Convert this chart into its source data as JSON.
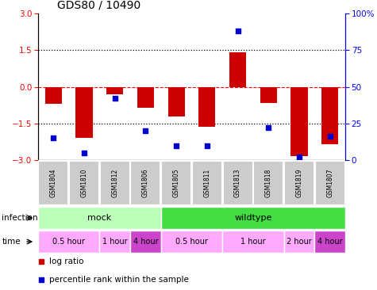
{
  "title": "GDS80 / 10490",
  "samples": [
    "GSM1804",
    "GSM1810",
    "GSM1812",
    "GSM1806",
    "GSM1805",
    "GSM1811",
    "GSM1813",
    "GSM1818",
    "GSM1819",
    "GSM1807"
  ],
  "log_ratios": [
    -0.7,
    -2.1,
    -0.3,
    -0.85,
    -1.2,
    -1.65,
    1.4,
    -0.65,
    -2.85,
    -2.35
  ],
  "percentile_ranks": [
    15,
    5,
    42,
    20,
    10,
    10,
    88,
    22,
    2,
    16
  ],
  "ylim_left": [
    -3,
    3
  ],
  "ylim_right": [
    0,
    100
  ],
  "yticks_left": [
    -3,
    -1.5,
    0,
    1.5,
    3
  ],
  "yticks_right": [
    0,
    25,
    50,
    75,
    100
  ],
  "bar_color": "#cc0000",
  "dot_color": "#0000cc",
  "infection_groups": [
    {
      "label": "mock",
      "start": 0,
      "end": 4,
      "color": "#bbffbb"
    },
    {
      "label": "wildtype",
      "start": 4,
      "end": 10,
      "color": "#44dd44"
    }
  ],
  "time_groups": [
    {
      "label": "0.5 hour",
      "start": 0,
      "end": 2,
      "color": "#ffaaff"
    },
    {
      "label": "1 hour",
      "start": 2,
      "end": 3,
      "color": "#ffaaff"
    },
    {
      "label": "4 hour",
      "start": 3,
      "end": 4,
      "color": "#cc44cc"
    },
    {
      "label": "0.5 hour",
      "start": 4,
      "end": 6,
      "color": "#ffaaff"
    },
    {
      "label": "1 hour",
      "start": 6,
      "end": 8,
      "color": "#ffaaff"
    },
    {
      "label": "2 hour",
      "start": 8,
      "end": 9,
      "color": "#ffaaff"
    },
    {
      "label": "4 hour",
      "start": 9,
      "end": 10,
      "color": "#cc44cc"
    }
  ],
  "sample_box_color": "#cccccc",
  "label_infection": "infection",
  "label_time": "time",
  "legend_items": [
    "log ratio",
    "percentile rank within the sample"
  ],
  "legend_colors": [
    "#cc0000",
    "#0000cc"
  ]
}
